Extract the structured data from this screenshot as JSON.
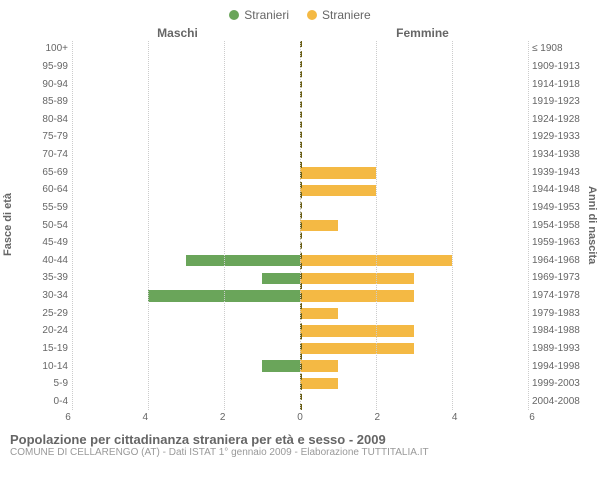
{
  "legend": {
    "male": {
      "label": "Stranieri",
      "color": "#6aa55a"
    },
    "female": {
      "label": "Straniere",
      "color": "#f4b944"
    }
  },
  "headers": {
    "male": "Maschi",
    "female": "Femmine"
  },
  "axis_left": {
    "title": "Fasce di età"
  },
  "axis_right": {
    "title": "Anni di nascita"
  },
  "x_axis": {
    "title": "",
    "male_ticks": [
      6,
      4,
      2,
      0
    ],
    "female_ticks": [
      0,
      2,
      4,
      6
    ],
    "max": 6
  },
  "grid_color": "#cccccc",
  "zero_line_color": "#6b6015",
  "background_color": "#ffffff",
  "bar_height_pct": 65,
  "rows": [
    {
      "age": "100+",
      "birth": "≤ 1908",
      "m": 0,
      "f": 0
    },
    {
      "age": "95-99",
      "birth": "1909-1913",
      "m": 0,
      "f": 0
    },
    {
      "age": "90-94",
      "birth": "1914-1918",
      "m": 0,
      "f": 0
    },
    {
      "age": "85-89",
      "birth": "1919-1923",
      "m": 0,
      "f": 0
    },
    {
      "age": "80-84",
      "birth": "1924-1928",
      "m": 0,
      "f": 0
    },
    {
      "age": "75-79",
      "birth": "1929-1933",
      "m": 0,
      "f": 0
    },
    {
      "age": "70-74",
      "birth": "1934-1938",
      "m": 0,
      "f": 0
    },
    {
      "age": "65-69",
      "birth": "1939-1943",
      "m": 0,
      "f": 2
    },
    {
      "age": "60-64",
      "birth": "1944-1948",
      "m": 0,
      "f": 2
    },
    {
      "age": "55-59",
      "birth": "1949-1953",
      "m": 0,
      "f": 0
    },
    {
      "age": "50-54",
      "birth": "1954-1958",
      "m": 0,
      "f": 1
    },
    {
      "age": "45-49",
      "birth": "1959-1963",
      "m": 0,
      "f": 0
    },
    {
      "age": "40-44",
      "birth": "1964-1968",
      "m": 3,
      "f": 4
    },
    {
      "age": "35-39",
      "birth": "1969-1973",
      "m": 1,
      "f": 3
    },
    {
      "age": "30-34",
      "birth": "1974-1978",
      "m": 4,
      "f": 3
    },
    {
      "age": "25-29",
      "birth": "1979-1983",
      "m": 0,
      "f": 1
    },
    {
      "age": "20-24",
      "birth": "1984-1988",
      "m": 0,
      "f": 3
    },
    {
      "age": "15-19",
      "birth": "1989-1993",
      "m": 0,
      "f": 3
    },
    {
      "age": "10-14",
      "birth": "1994-1998",
      "m": 1,
      "f": 1
    },
    {
      "age": "5-9",
      "birth": "1999-2003",
      "m": 0,
      "f": 1
    },
    {
      "age": "0-4",
      "birth": "2004-2008",
      "m": 0,
      "f": 0
    }
  ],
  "caption": {
    "title": "Popolazione per cittadinanza straniera per età e sesso - 2009",
    "subtitle": "COMUNE DI CELLARENGO (AT) - Dati ISTAT 1° gennaio 2009 - Elaborazione TUTTITALIA.IT"
  }
}
